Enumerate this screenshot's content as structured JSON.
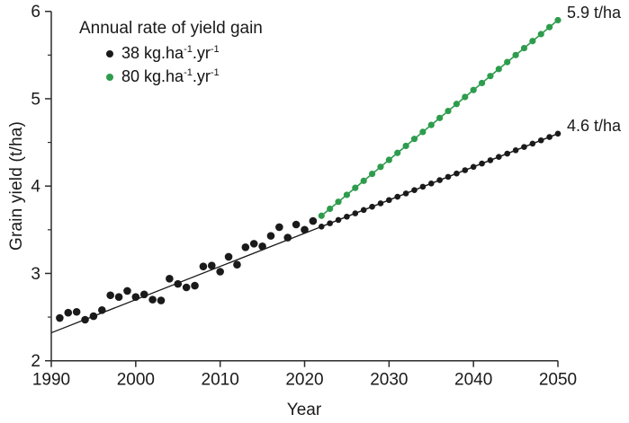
{
  "figure": {
    "y_axis_label": "Grain yield (t/ha)",
    "x_axis_label": "Year",
    "legend": {
      "title": "Annual rate of yield gain",
      "items": [
        {
          "id": "rate-38",
          "prefix": "38 kg.ha",
          "sup1": "-1",
          "mid": ".yr",
          "sup2": "-1",
          "color": "#1a1a1a"
        },
        {
          "id": "rate-80",
          "prefix": "80 kg.ha",
          "sup1": "-1",
          "mid": ".yr",
          "sup2": "-1",
          "color": "#2e9c4d"
        }
      ]
    }
  },
  "chart_data": {
    "type": "scatter",
    "title": "",
    "xlabel": "Year",
    "ylabel": "Grain yield (t/ha)",
    "xlim": [
      1990,
      2050
    ],
    "ylim": [
      2,
      6
    ],
    "x_ticks": [
      1990,
      2000,
      2010,
      2020,
      2030,
      2040,
      2050
    ],
    "y_ticks": [
      2,
      3,
      4,
      5,
      6
    ],
    "y_minor_ticks": [
      2.5,
      3.5,
      4.5,
      5.5
    ],
    "grid": false,
    "legend_position": "upper-left",
    "axis_color": "#2b2b2b",
    "series": [
      {
        "name": "observed-yield",
        "color": "#1a1a1a",
        "marker_radius": 4.3,
        "has_line": false,
        "points": [
          [
            1991,
            2.49
          ],
          [
            1992,
            2.55
          ],
          [
            1993,
            2.56
          ],
          [
            1994,
            2.47
          ],
          [
            1995,
            2.51
          ],
          [
            1996,
            2.58
          ],
          [
            1997,
            2.75
          ],
          [
            1998,
            2.73
          ],
          [
            1999,
            2.8
          ],
          [
            2000,
            2.73
          ],
          [
            2001,
            2.76
          ],
          [
            2002,
            2.7
          ],
          [
            2003,
            2.69
          ],
          [
            2004,
            2.94
          ],
          [
            2005,
            2.88
          ],
          [
            2006,
            2.84
          ],
          [
            2007,
            2.86
          ],
          [
            2008,
            3.08
          ],
          [
            2009,
            3.09
          ],
          [
            2010,
            3.02
          ],
          [
            2011,
            3.19
          ],
          [
            2012,
            3.1
          ],
          [
            2013,
            3.3
          ],
          [
            2014,
            3.34
          ],
          [
            2015,
            3.31
          ],
          [
            2016,
            3.43
          ],
          [
            2017,
            3.53
          ],
          [
            2018,
            3.41
          ],
          [
            2019,
            3.56
          ],
          [
            2020,
            3.5
          ],
          [
            2021,
            3.6
          ]
        ]
      },
      {
        "name": "projection-38-kg-ha-yr",
        "color": "#1a1a1a",
        "marker_radius": 3.3,
        "has_line": true,
        "line_width": 1.3,
        "points": [
          [
            2022,
            3.536
          ],
          [
            2023,
            3.574
          ],
          [
            2024,
            3.612
          ],
          [
            2025,
            3.65
          ],
          [
            2026,
            3.688
          ],
          [
            2027,
            3.726
          ],
          [
            2028,
            3.764
          ],
          [
            2029,
            3.802
          ],
          [
            2030,
            3.84
          ],
          [
            2031,
            3.878
          ],
          [
            2032,
            3.916
          ],
          [
            2033,
            3.954
          ],
          [
            2034,
            3.992
          ],
          [
            2035,
            4.03
          ],
          [
            2036,
            4.068
          ],
          [
            2037,
            4.106
          ],
          [
            2038,
            4.144
          ],
          [
            2039,
            4.182
          ],
          [
            2040,
            4.22
          ],
          [
            2041,
            4.258
          ],
          [
            2042,
            4.296
          ],
          [
            2043,
            4.334
          ],
          [
            2044,
            4.372
          ],
          [
            2045,
            4.41
          ],
          [
            2046,
            4.448
          ],
          [
            2047,
            4.486
          ],
          [
            2048,
            4.524
          ],
          [
            2049,
            4.562
          ],
          [
            2050,
            4.6
          ]
        ]
      },
      {
        "name": "projection-80-kg-ha-yr",
        "color": "#2e9c4d",
        "marker_radius": 3.6,
        "has_line": true,
        "line_width": 1.6,
        "points": [
          [
            2022,
            3.66
          ],
          [
            2023,
            3.74
          ],
          [
            2024,
            3.82
          ],
          [
            2025,
            3.9
          ],
          [
            2026,
            3.98
          ],
          [
            2027,
            4.06
          ],
          [
            2028,
            4.14
          ],
          [
            2029,
            4.22
          ],
          [
            2030,
            4.3
          ],
          [
            2031,
            4.38
          ],
          [
            2032,
            4.46
          ],
          [
            2033,
            4.54
          ],
          [
            2034,
            4.62
          ],
          [
            2035,
            4.7
          ],
          [
            2036,
            4.78
          ],
          [
            2037,
            4.86
          ],
          [
            2038,
            4.94
          ],
          [
            2039,
            5.02
          ],
          [
            2040,
            5.1
          ],
          [
            2041,
            5.18
          ],
          [
            2042,
            5.26
          ],
          [
            2043,
            5.34
          ],
          [
            2044,
            5.42
          ],
          [
            2045,
            5.5
          ],
          [
            2046,
            5.58
          ],
          [
            2047,
            5.66
          ],
          [
            2048,
            5.74
          ],
          [
            2049,
            5.82
          ],
          [
            2050,
            5.9
          ]
        ]
      }
    ],
    "trendline": {
      "name": "fitted-trend-38",
      "color": "#1a1a1a",
      "width": 1.3,
      "x": [
        1990,
        2050
      ],
      "y": [
        2.32,
        4.6
      ]
    },
    "annotations": [
      {
        "text": "5.9 t/ha",
        "x": 2050,
        "y": 5.9,
        "series": "projection-80-kg-ha-yr"
      },
      {
        "text": "4.6 t/ha",
        "x": 2050,
        "y": 4.6,
        "series": "projection-38-kg-ha-yr"
      }
    ]
  }
}
